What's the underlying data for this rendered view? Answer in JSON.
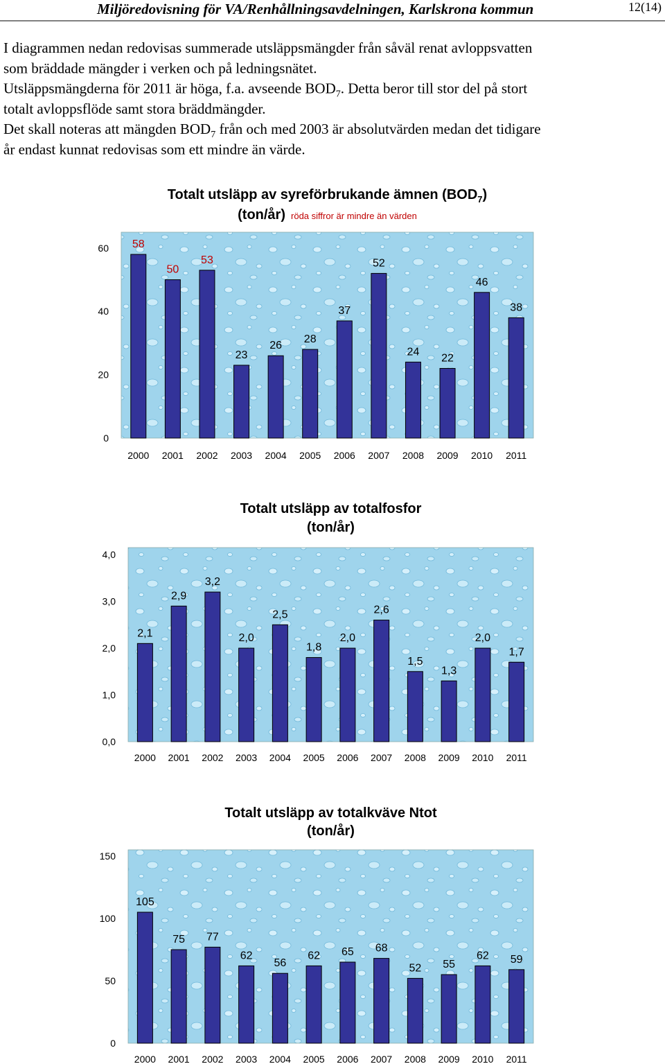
{
  "header": {
    "title": "Miljöredovisning för VA/Renhållningsavdelningen, Karlskrona kommun",
    "page": "12(14)"
  },
  "text_lines": [
    [
      {
        "text": "I diagrammen nedan redovisas summerade utsläppsmängder från såväl renat avloppsvatten"
      }
    ],
    [
      {
        "text": "som bräddade mängder i verken och på ledningsnätet."
      }
    ],
    [
      {
        "text": "Utsläppsmängderna för 2011 är höga, f.a. avseende BOD"
      },
      {
        "sub": "7"
      },
      {
        "text": ". Detta beror till stor del på stort"
      }
    ],
    [
      {
        "text": "totalt avloppsflöde samt stora bräddmängder."
      }
    ],
    [
      {
        "text": "Det skall noteras att mängden BOD"
      },
      {
        "sub": "7"
      },
      {
        "text": " från och med 2003 är absolutvärden medan det tidigare"
      }
    ],
    [
      {
        "text": "år endast kunnat redovisas som ett mindre än värde."
      }
    ]
  ],
  "chart_data": [
    {
      "type": "bar",
      "title": [
        {
          "text": "Totalt utsläpp av syreförbrukande ämnen (BOD"
        },
        {
          "sub": "7"
        },
        {
          "text": ")"
        }
      ],
      "subtitle": "(ton/år)",
      "note": "röda siffror är mindre än värden",
      "note_color": "#c00000",
      "categories": [
        "2000",
        "2001",
        "2002",
        "2003",
        "2004",
        "2005",
        "2006",
        "2007",
        "2008",
        "2009",
        "2010",
        "2011"
      ],
      "values": [
        58,
        50,
        53,
        23,
        26,
        28,
        37,
        52,
        24,
        22,
        46,
        38
      ],
      "label_colors": [
        "#c00000",
        "#c00000",
        "#c00000",
        "#000000",
        "#000000",
        "#000000",
        "#000000",
        "#000000",
        "#000000",
        "#000000",
        "#000000",
        "#000000"
      ],
      "color": "#333399",
      "ylim": [
        0,
        65
      ],
      "yticks": [
        0,
        20,
        40,
        60
      ]
    },
    {
      "type": "bar",
      "title": "Totalt utsläpp av totalfosfor",
      "subtitle": "(ton/år)",
      "categories": [
        "2000",
        "2001",
        "2002",
        "2003",
        "2004",
        "2005",
        "2006",
        "2007",
        "2008",
        "2009",
        "2010",
        "2011"
      ],
      "values": [
        2.1,
        2.9,
        3.2,
        2.0,
        2.5,
        1.8,
        2.0,
        2.6,
        1.5,
        1.3,
        2.0,
        1.7
      ],
      "value_labels": [
        "2,1",
        "2,9",
        "3,2",
        "2,0",
        "2,5",
        "1,8",
        "2,0",
        "2,6",
        "1,5",
        "1,3",
        "2,0",
        "1,7"
      ],
      "label_color": "#000000",
      "color": "#333399",
      "ylim": [
        0,
        4.15
      ],
      "yticks": [
        {
          "value": 0,
          "label": "0,0"
        },
        {
          "value": 1,
          "label": "1,0"
        },
        {
          "value": 2,
          "label": "2,0"
        },
        {
          "value": 3,
          "label": "3,0"
        },
        {
          "value": 4,
          "label": "4,0"
        }
      ]
    },
    {
      "type": "bar",
      "title": "Totalt utsläpp av totalkväve Ntot",
      "subtitle": "(ton/år)",
      "categories": [
        "2000",
        "2001",
        "2002",
        "2003",
        "2004",
        "2005",
        "2006",
        "2007",
        "2008",
        "2009",
        "2010",
        "2011"
      ],
      "values": [
        105,
        75,
        77,
        62,
        56,
        62,
        65,
        68,
        52,
        55,
        62,
        59
      ],
      "label_color": "#000000",
      "color": "#333399",
      "ylim": [
        0,
        155
      ],
      "yticks": [
        0,
        50,
        100,
        150
      ]
    }
  ]
}
